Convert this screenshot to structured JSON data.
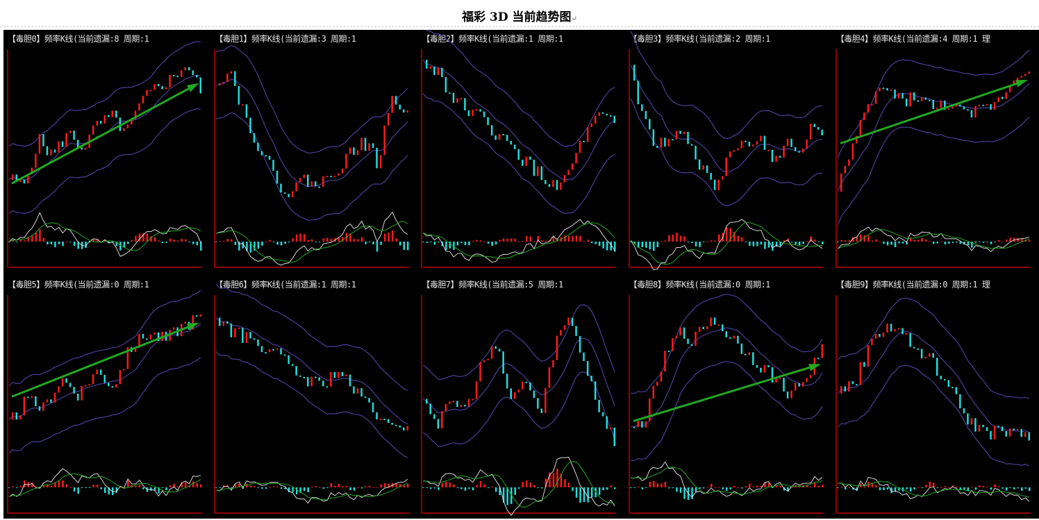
{
  "title": "福彩 3D 当前趋势图",
  "return_mark": "↵",
  "colors": {
    "up": "#ff1a1a",
    "down": "#22dddd",
    "band": "#4a3f9a",
    "axis": "#c00000",
    "arrow": "#22a822",
    "dif": "#d8d8d8",
    "dea": "#22aa22"
  },
  "chart_data": [
    {
      "type": "candlestick",
      "header": "【毒胆0】频率K线(当前遗漏:8 周期:1",
      "arrow": true,
      "path": [
        20,
        15,
        45,
        35,
        50,
        40,
        55,
        60,
        50,
        70,
        80,
        85,
        95,
        78
      ]
    },
    {
      "type": "candlestick",
      "header": "【毒胆1】频率K线(当前遗漏:3 周期:1",
      "arrow": false,
      "path": [
        85,
        90,
        60,
        40,
        20,
        10,
        20,
        15,
        25,
        35,
        45,
        30,
        75,
        60
      ]
    },
    {
      "type": "candlestick",
      "header": "【毒胆2】频率K线(当前遗漏:1 周期:1",
      "arrow": false,
      "path": [
        95,
        90,
        70,
        65,
        55,
        45,
        35,
        25,
        15,
        20,
        45,
        60,
        55
      ]
    },
    {
      "type": "candlestick",
      "header": "【毒胆3】频率K线(当前遗漏:2 周期:1",
      "arrow": false,
      "path": [
        95,
        60,
        45,
        40,
        50,
        45,
        25,
        10,
        30,
        45,
        40,
        45,
        30,
        45,
        35,
        55,
        50
      ]
    },
    {
      "type": "candlestick",
      "header": "【毒胆4】频率K线(当前遗漏:4 周期:1 理",
      "arrow": true,
      "path": [
        15,
        40,
        70,
        80,
        70,
        75,
        65,
        70,
        60,
        65,
        70,
        85,
        95
      ]
    },
    {
      "type": "candlestick",
      "header": "【毒胆5】频率K线(当前遗漏:0 周期:1",
      "arrow": true,
      "path": [
        20,
        35,
        30,
        50,
        40,
        55,
        45,
        70,
        80,
        75,
        85,
        90
      ]
    },
    {
      "type": "candlestick",
      "header": "【毒胆6】频率K线(当前遗漏:1 周期:1",
      "arrow": false,
      "path": [
        90,
        80,
        75,
        70,
        60,
        50,
        45,
        55,
        40,
        30,
        15,
        20
      ]
    },
    {
      "type": "candlestick",
      "header": "【毒胆7】频率K线(当前遗漏:5 周期:1",
      "arrow": false,
      "path": [
        40,
        20,
        35,
        30,
        60,
        70,
        35,
        50,
        25,
        75,
        90,
        60,
        30,
        10
      ]
    },
    {
      "type": "candlestick",
      "header": "【毒胆8】频率K线(当前遗漏:0 周期:1",
      "arrow": true,
      "path": [
        15,
        25,
        60,
        80,
        75,
        90,
        80,
        70,
        60,
        50,
        40,
        50,
        70
      ]
    },
    {
      "type": "candlestick",
      "header": "【毒胆9】频率K线(当前遗漏:0 周期:1 理",
      "arrow": false,
      "path": [
        40,
        50,
        80,
        85,
        70,
        60,
        40,
        20,
        15,
        15,
        10
      ]
    }
  ]
}
